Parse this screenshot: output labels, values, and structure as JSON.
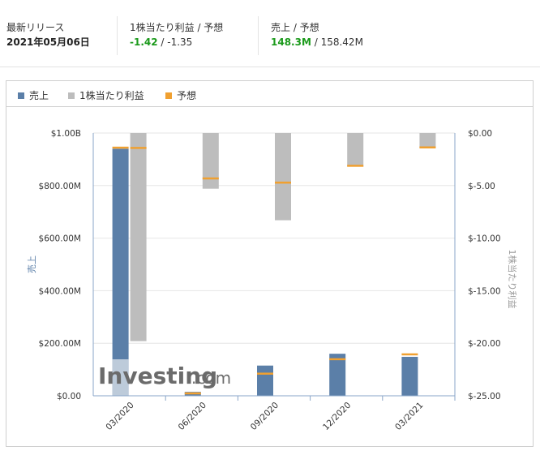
{
  "stats": {
    "release": {
      "label": "最新リリース",
      "value": "2021年05月06日"
    },
    "eps": {
      "label": "1株当たり利益 / 予想",
      "actual": "-1.42",
      "sep": " / ",
      "forecast": "-1.35"
    },
    "revenue": {
      "label": "売上 / 予想",
      "actual": "148.3M",
      "sep": " / ",
      "forecast": "158.42M"
    }
  },
  "colors": {
    "revenue": "#5b7fa8",
    "eps": "#bdbdbd",
    "forecast": "#f0a030",
    "positive": "#1b9a1b"
  },
  "legend": {
    "revenue": "売上",
    "eps": "1株当たり利益",
    "forecast": "予想"
  },
  "chart_data": {
    "type": "bar",
    "categories": [
      "03/2020",
      "06/2020",
      "09/2020",
      "12/2020",
      "03/2021"
    ],
    "left_axis": {
      "label": "売上",
      "ticks": [
        "$0.00",
        "$200.00M",
        "$400.00M",
        "$600.00M",
        "$800.00M",
        "$1.00B"
      ],
      "ylim": [
        0,
        1000
      ]
    },
    "right_axis": {
      "label": "1株当たり利益",
      "ticks": [
        "$0.00",
        "$-5.00",
        "$-10.00",
        "$-15.00",
        "$-20.00",
        "$-25.00"
      ],
      "ylim": [
        0,
        -25
      ]
    },
    "series": [
      {
        "name": "売上",
        "axis": "left",
        "values": [
          940,
          15,
          115,
          160,
          148.3
        ],
        "forecast": [
          945,
          10,
          85,
          140,
          158.42
        ]
      },
      {
        "name": "1株当たり利益",
        "axis": "right",
        "values": [
          -19.8,
          -5.3,
          -8.3,
          -3.2,
          -1.42
        ],
        "forecast": [
          -1.4,
          -4.3,
          -4.7,
          -3.1,
          -1.35
        ]
      }
    ],
    "watermark": "Investing.com"
  }
}
